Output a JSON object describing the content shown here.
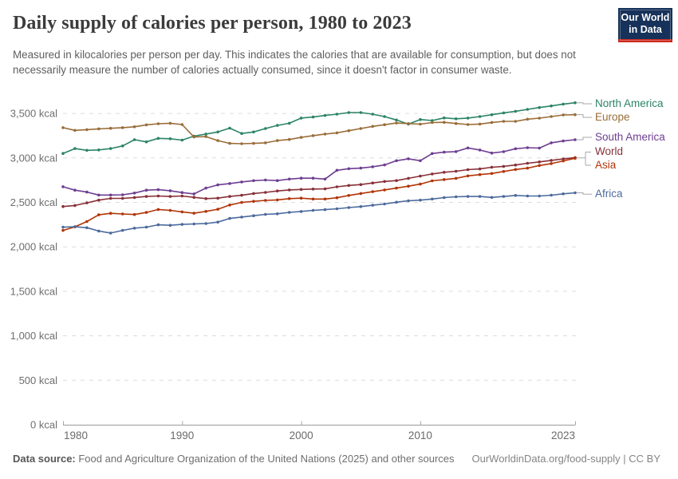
{
  "header": {
    "title": "Daily supply of calories per person, 1980 to 2023",
    "subtitle": "Measured in kilocalories per person per day. This indicates the calories that are available for consumption, but does not necessarily measure the number of calories actually consumed, since it doesn't factor in consumer waste."
  },
  "logo": {
    "line1": "Our World",
    "line2": "in Data"
  },
  "chart_data": {
    "type": "line",
    "unit": "kcal",
    "title": "Daily supply of calories per person, 1980 to 2023",
    "xlabel": "",
    "ylabel": "",
    "ylim": [
      0,
      3600
    ],
    "xlim": [
      1980,
      2023
    ],
    "grid": "dashed-horizontal",
    "legend_position": "right",
    "x": [
      1980,
      1981,
      1982,
      1983,
      1984,
      1985,
      1986,
      1987,
      1988,
      1989,
      1990,
      1991,
      1992,
      1993,
      1994,
      1995,
      1996,
      1997,
      1998,
      1999,
      2000,
      2001,
      2002,
      2003,
      2004,
      2005,
      2006,
      2007,
      2008,
      2009,
      2010,
      2011,
      2012,
      2013,
      2014,
      2015,
      2016,
      2017,
      2018,
      2019,
      2020,
      2021,
      2022,
      2023
    ],
    "x_tick_labels": [
      "1980",
      "1990",
      "2000",
      "2010",
      "2023"
    ],
    "y_ticks": [
      {
        "value": 0,
        "label": "0 kcal"
      },
      {
        "value": 500,
        "label": "500 kcal"
      },
      {
        "value": 1000,
        "label": "1,000 kcal"
      },
      {
        "value": 1500,
        "label": "1,500 kcal"
      },
      {
        "value": 2000,
        "label": "2,000 kcal"
      },
      {
        "value": 2500,
        "label": "2,500 kcal"
      },
      {
        "value": 3000,
        "label": "3,000 kcal"
      },
      {
        "value": 3500,
        "label": "3,500 kcal"
      }
    ],
    "series": [
      {
        "name": "North America",
        "color": "#2C8465",
        "values": [
          3050,
          3105,
          3085,
          3090,
          3105,
          3135,
          3205,
          3180,
          3220,
          3215,
          3200,
          3245,
          3268,
          3292,
          3335,
          3275,
          3292,
          3330,
          3365,
          3390,
          3448,
          3460,
          3478,
          3492,
          3510,
          3510,
          3492,
          3465,
          3426,
          3380,
          3432,
          3420,
          3450,
          3440,
          3448,
          3465,
          3486,
          3506,
          3524,
          3546,
          3566,
          3584,
          3605,
          3620
        ]
      },
      {
        "name": "Europe",
        "color": "#996D39",
        "values": [
          3340,
          3310,
          3318,
          3327,
          3333,
          3340,
          3350,
          3372,
          3384,
          3390,
          3375,
          3235,
          3240,
          3195,
          3163,
          3160,
          3163,
          3170,
          3195,
          3207,
          3231,
          3250,
          3268,
          3282,
          3306,
          3330,
          3355,
          3373,
          3392,
          3386,
          3380,
          3398,
          3400,
          3387,
          3375,
          3381,
          3399,
          3411,
          3411,
          3435,
          3447,
          3465,
          3483,
          3486
        ]
      },
      {
        "name": "South America",
        "color": "#6D3E91",
        "values": [
          2676,
          2637,
          2616,
          2583,
          2583,
          2585,
          2605,
          2637,
          2643,
          2631,
          2610,
          2595,
          2661,
          2697,
          2712,
          2730,
          2744,
          2751,
          2745,
          2762,
          2772,
          2772,
          2762,
          2861,
          2879,
          2885,
          2900,
          2921,
          2969,
          2990,
          2969,
          3049,
          3065,
          3071,
          3112,
          3089,
          3055,
          3070,
          3103,
          3115,
          3110,
          3170,
          3190,
          3205
        ]
      },
      {
        "name": "World",
        "color": "#883039",
        "values": [
          2453,
          2465,
          2495,
          2525,
          2545,
          2545,
          2555,
          2566,
          2572,
          2566,
          2572,
          2557,
          2542,
          2548,
          2566,
          2580,
          2600,
          2612,
          2628,
          2640,
          2645,
          2650,
          2652,
          2675,
          2690,
          2700,
          2718,
          2735,
          2745,
          2770,
          2795,
          2820,
          2838,
          2850,
          2868,
          2876,
          2895,
          2905,
          2920,
          2940,
          2955,
          2972,
          2988,
          3004
        ]
      },
      {
        "name": "Asia",
        "color": "#B13507",
        "values": [
          2185,
          2225,
          2285,
          2360,
          2377,
          2370,
          2364,
          2387,
          2420,
          2410,
          2393,
          2378,
          2399,
          2423,
          2470,
          2500,
          2512,
          2522,
          2528,
          2542,
          2548,
          2538,
          2538,
          2552,
          2578,
          2600,
          2620,
          2640,
          2661,
          2682,
          2706,
          2742,
          2757,
          2770,
          2798,
          2812,
          2825,
          2847,
          2870,
          2885,
          2915,
          2936,
          2966,
          2996
        ]
      },
      {
        "name": "Africa",
        "color": "#4C6A9C",
        "values": [
          2222,
          2225,
          2215,
          2178,
          2155,
          2185,
          2210,
          2222,
          2248,
          2242,
          2252,
          2258,
          2262,
          2278,
          2320,
          2335,
          2350,
          2365,
          2372,
          2388,
          2398,
          2410,
          2418,
          2428,
          2442,
          2452,
          2468,
          2482,
          2502,
          2518,
          2525,
          2538,
          2554,
          2563,
          2566,
          2566,
          2556,
          2566,
          2578,
          2572,
          2572,
          2581,
          2596,
          2608
        ]
      }
    ]
  },
  "footer": {
    "data_source_label": "Data source:",
    "data_source_text": " Food and Agriculture Organization of the United Nations (2025) and other sources",
    "citation": "OurWorldinData.org/food-supply | CC BY"
  }
}
